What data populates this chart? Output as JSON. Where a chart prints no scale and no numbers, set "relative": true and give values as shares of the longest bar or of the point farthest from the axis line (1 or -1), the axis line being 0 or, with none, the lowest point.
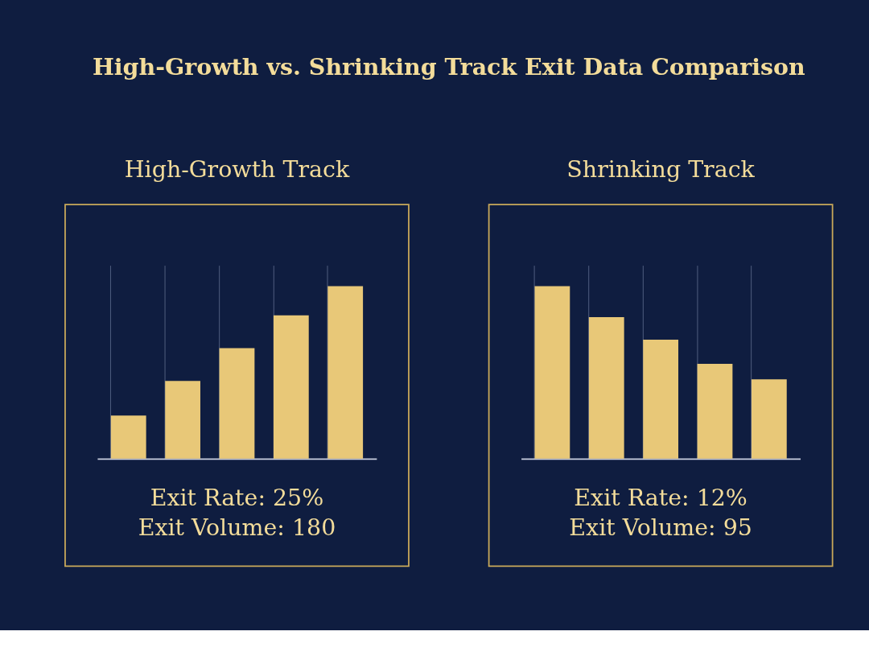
{
  "chart_data": [
    {
      "type": "bar",
      "title": "High-Growth vs. Shrinking Track Exit Data Comparison",
      "subtitle": "High-Growth Track",
      "categories": [
        null,
        null,
        null,
        null,
        null
      ],
      "values": [
        0.25,
        0.45,
        0.64,
        0.83,
        1
      ],
      "relative": true,
      "color": "#e8c878",
      "grid": "x",
      "annotations": [
        "Exit Rate: 25%",
        "Exit Volume: 180"
      ]
    },
    {
      "type": "bar",
      "subtitle": "Shrinking Track",
      "categories": [
        null,
        null,
        null,
        null,
        null
      ],
      "values": [
        1,
        0.82,
        0.69,
        0.55,
        0.46
      ],
      "relative": true,
      "color": "#e8c878",
      "grid": "x",
      "annotations": [
        "Exit Rate: 12%",
        "Exit Volume: 95"
      ]
    }
  ]
}
